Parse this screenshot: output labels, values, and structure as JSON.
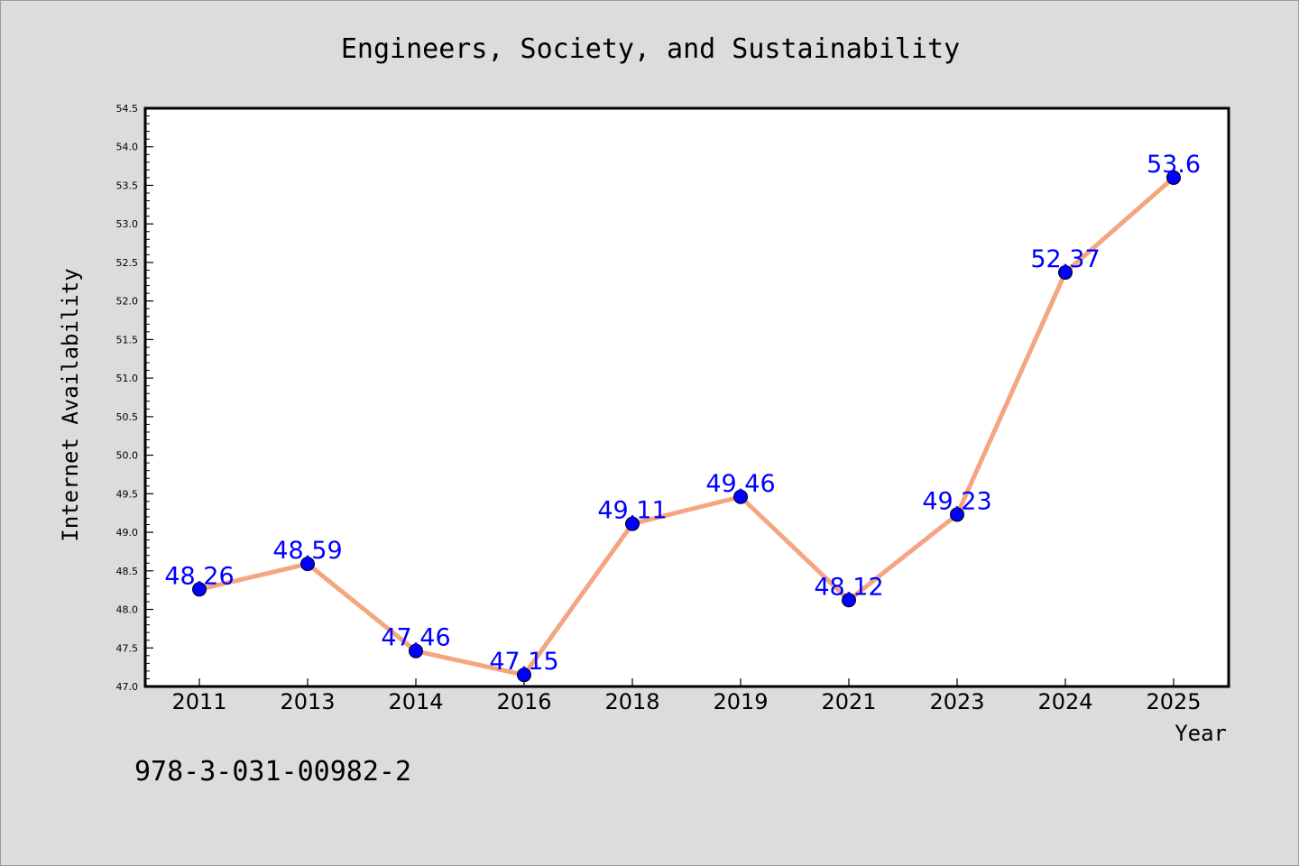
{
  "chart_data": {
    "type": "line",
    "title": "Engineers, Society, and Sustainability",
    "xlabel": "Year",
    "ylabel": "Internet Availability",
    "categories": [
      "2011",
      "2013",
      "2014",
      "2016",
      "2018",
      "2019",
      "2021",
      "2023",
      "2024",
      "2025"
    ],
    "values": [
      48.26,
      48.59,
      47.46,
      47.15,
      49.11,
      49.46,
      48.12,
      49.23,
      52.37,
      53.6
    ],
    "data_labels": [
      "48.26",
      "48.59",
      "47.46",
      "47.15",
      "49.11",
      "49.46",
      "48.12",
      "49.23",
      "52.37",
      "53.6"
    ],
    "ylim": [
      47.0,
      54.5
    ],
    "yticks": [
      "47.0",
      "47.5",
      "48.0",
      "48.5",
      "49.0",
      "49.5",
      "50.0",
      "50.5",
      "51.0",
      "51.5",
      "52.0",
      "52.5",
      "53.0",
      "53.5",
      "54.0",
      "54.5"
    ],
    "grid": false,
    "legend": "none",
    "colors": {
      "line": "#f4a582",
      "marker": "#0000ff",
      "labels": "#0000ff",
      "background": "#dcdcdc",
      "plot_area": "#ffffff"
    }
  },
  "footer": {
    "text": "978-3-031-00982-2"
  }
}
